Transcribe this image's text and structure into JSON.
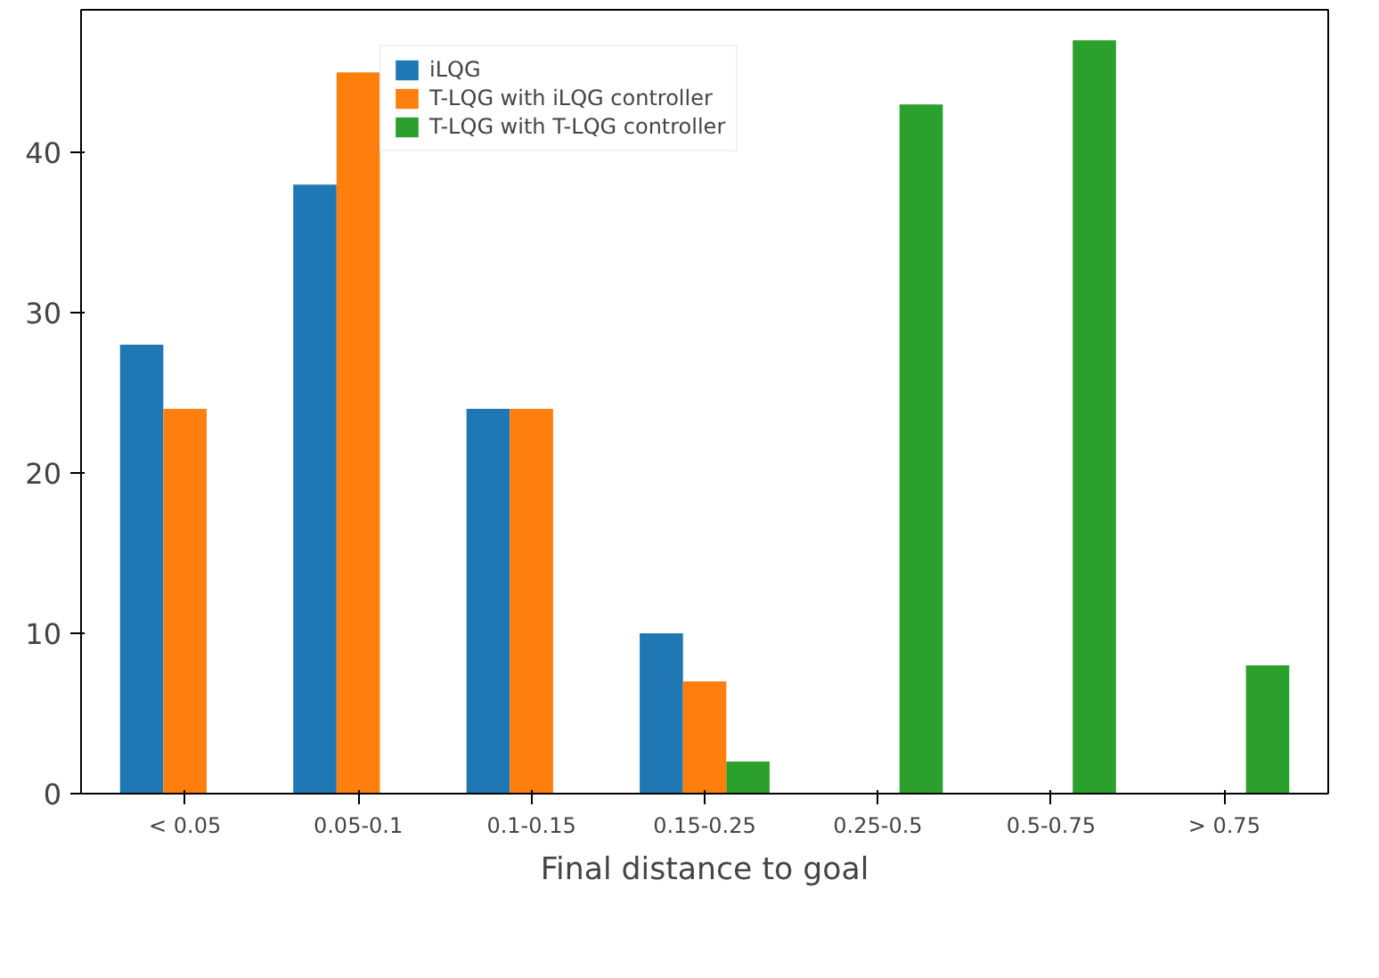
{
  "chart_data": {
    "type": "bar",
    "xlabel": "Final distance to goal",
    "categories": [
      "< 0.05",
      "0.05-0.1",
      "0.1-0.15",
      "0.15-0.25",
      "0.25-0.5",
      "0.5-0.75",
      "> 0.75"
    ],
    "series": [
      {
        "name": "iLQG",
        "color": "#1f77b4",
        "values": [
          28,
          38,
          24,
          10,
          0,
          0,
          0
        ]
      },
      {
        "name": "T-LQG with iLQG controller",
        "color": "#ff7f0e",
        "values": [
          24,
          45,
          24,
          7,
          0,
          0,
          0
        ]
      },
      {
        "name": "T-LQG with T-LQG controller",
        "color": "#2ca02c",
        "values": [
          0,
          0,
          0,
          2,
          43,
          47,
          8
        ]
      }
    ],
    "ylim": [
      0,
      48.9
    ],
    "yticks": [
      0,
      10,
      20,
      30,
      40
    ],
    "grid": false,
    "legend": "top"
  }
}
